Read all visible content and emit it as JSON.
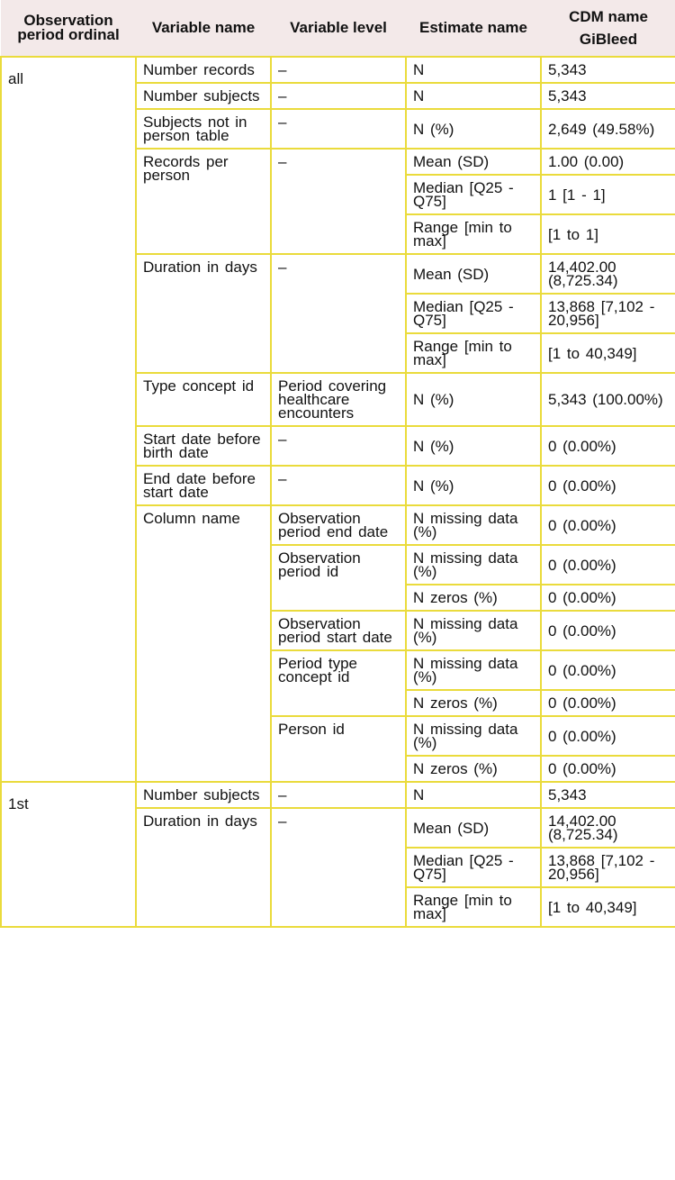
{
  "header": {
    "columns": [
      "Observation period ordinal",
      "Variable name",
      "Variable level",
      "Estimate name"
    ],
    "cdm_name": "CDM name",
    "database": "GiBleed"
  },
  "groups": [
    {
      "ordinal": "all",
      "variables": [
        {
          "name": "Number records",
          "levels": [
            {
              "level": "–",
              "estimates": [
                {
                  "name": "N",
                  "value": "5,343"
                }
              ]
            }
          ]
        },
        {
          "name": "Number subjects",
          "levels": [
            {
              "level": "–",
              "estimates": [
                {
                  "name": "N",
                  "value": "5,343"
                }
              ]
            }
          ]
        },
        {
          "name": "Subjects not in person table",
          "levels": [
            {
              "level": "–",
              "estimates": [
                {
                  "name": "N (%)",
                  "value": "2,649 (49.58%)"
                }
              ]
            }
          ]
        },
        {
          "name": "Records per person",
          "levels": [
            {
              "level": "–",
              "estimates": [
                {
                  "name": "Mean (SD)",
                  "value": "1.00 (0.00)"
                },
                {
                  "name": "Median [Q25 - Q75]",
                  "value": "1 [1 - 1]"
                },
                {
                  "name": "Range [min to max]",
                  "value": "[1 to 1]"
                }
              ]
            }
          ]
        },
        {
          "name": "Duration in days",
          "levels": [
            {
              "level": "–",
              "estimates": [
                {
                  "name": "Mean (SD)",
                  "value": "14,402.00 (8,725.34)"
                },
                {
                  "name": "Median [Q25 - Q75]",
                  "value": "13,868 [7,102 - 20,956]"
                },
                {
                  "name": "Range [min to max]",
                  "value": "[1 to 40,349]"
                }
              ]
            }
          ]
        },
        {
          "name": "Type concept id",
          "levels": [
            {
              "level": "Period covering healthcare encounters",
              "estimates": [
                {
                  "name": "N (%)",
                  "value": "5,343 (100.00%)"
                }
              ]
            }
          ]
        },
        {
          "name": "Start date before birth date",
          "levels": [
            {
              "level": "–",
              "estimates": [
                {
                  "name": "N (%)",
                  "value": "0 (0.00%)"
                }
              ]
            }
          ]
        },
        {
          "name": "End date before start date",
          "levels": [
            {
              "level": "–",
              "estimates": [
                {
                  "name": "N (%)",
                  "value": "0 (0.00%)"
                }
              ]
            }
          ]
        },
        {
          "name": "Column name",
          "levels": [
            {
              "level": "Observation period end date",
              "estimates": [
                {
                  "name": "N missing data (%)",
                  "value": "0 (0.00%)"
                }
              ]
            },
            {
              "level": "Observation period id",
              "estimates": [
                {
                  "name": "N missing data (%)",
                  "value": "0 (0.00%)"
                },
                {
                  "name": "N zeros (%)",
                  "value": "0 (0.00%)"
                }
              ]
            },
            {
              "level": "Observation period start date",
              "estimates": [
                {
                  "name": "N missing data (%)",
                  "value": "0 (0.00%)"
                }
              ]
            },
            {
              "level": "Period type concept id",
              "estimates": [
                {
                  "name": "N missing data (%)",
                  "value": "0 (0.00%)"
                },
                {
                  "name": "N zeros (%)",
                  "value": "0 (0.00%)"
                }
              ]
            },
            {
              "level": "Person id",
              "estimates": [
                {
                  "name": "N missing data (%)",
                  "value": "0 (0.00%)"
                },
                {
                  "name": "N zeros (%)",
                  "value": "0 (0.00%)"
                }
              ]
            }
          ]
        }
      ]
    },
    {
      "ordinal": "1st",
      "variables": [
        {
          "name": "Number subjects",
          "levels": [
            {
              "level": "–",
              "estimates": [
                {
                  "name": "N",
                  "value": "5,343"
                }
              ]
            }
          ]
        },
        {
          "name": "Duration in days",
          "levels": [
            {
              "level": "–",
              "estimates": [
                {
                  "name": "Mean (SD)",
                  "value": "14,402.00 (8,725.34)"
                },
                {
                  "name": "Median [Q25 - Q75]",
                  "value": "13,868 [7,102 - 20,956]"
                },
                {
                  "name": "Range [min to max]",
                  "value": "[1 to 40,349]"
                }
              ]
            }
          ]
        }
      ]
    }
  ]
}
